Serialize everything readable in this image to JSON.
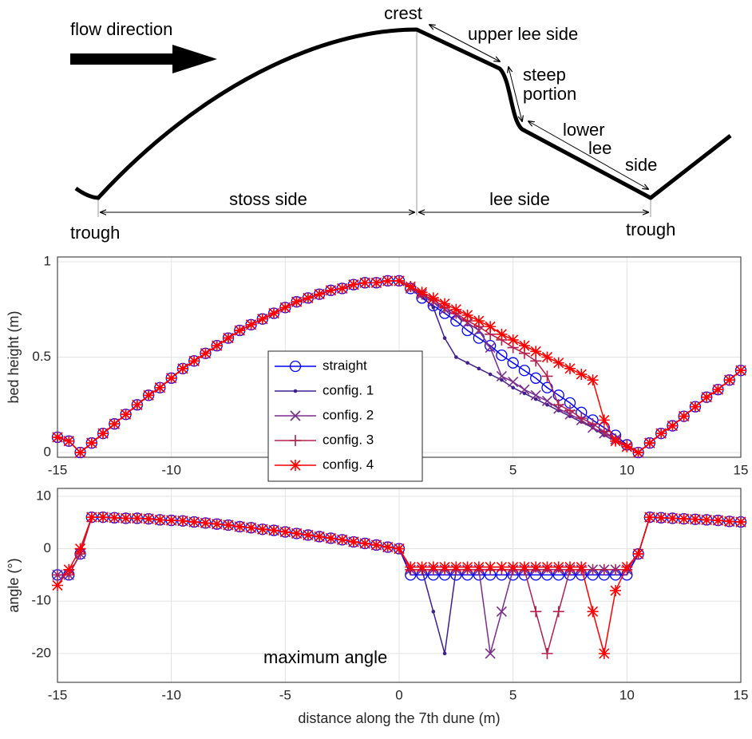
{
  "diagram": {
    "flow_label": "flow direction",
    "crest": "crest",
    "upper_lee": "upper lee side",
    "steep": [
      "steep",
      "portion"
    ],
    "lower_lee": [
      "lower",
      "lee",
      "side"
    ],
    "stoss": "stoss side",
    "lee": "lee side",
    "trough_left": "trough",
    "trough_right": "trough"
  },
  "chart_data": [
    {
      "type": "line",
      "ylabel": "bed height (m)",
      "xlim": [
        -15,
        15
      ],
      "xticks": [
        -15,
        -10,
        -5,
        0,
        5,
        10,
        15
      ],
      "ylim": [
        -0.025,
        1.025
      ],
      "yticks": [
        0,
        0.5,
        1
      ],
      "grid": true,
      "legend": "center",
      "x": [
        -15,
        -14.5,
        -14,
        -13.5,
        -13,
        -12.5,
        -12,
        -11.5,
        -11,
        -10.5,
        -10,
        -9.5,
        -9,
        -8.5,
        -8,
        -7.5,
        -7,
        -6.5,
        -6,
        -5.5,
        -5,
        -4.5,
        -4,
        -3.5,
        -3,
        -2.5,
        -2,
        -1.5,
        -1,
        -0.5,
        0,
        0.5,
        1,
        1.5,
        2,
        2.5,
        3,
        3.5,
        4,
        4.5,
        5,
        5.5,
        6,
        6.5,
        7,
        7.5,
        8,
        8.5,
        9,
        9.5,
        10,
        10.5,
        11,
        11.5,
        12,
        12.5,
        13,
        13.5,
        14,
        14.5,
        15
      ],
      "series": [
        {
          "name": "straight",
          "color": "#0000ff",
          "marker": "o",
          "values": [
            0.08,
            0.06,
            0,
            0.05,
            0.1,
            0.15,
            0.2,
            0.25,
            0.3,
            0.34,
            0.39,
            0.44,
            0.48,
            0.52,
            0.56,
            0.6,
            0.64,
            0.67,
            0.7,
            0.73,
            0.76,
            0.79,
            0.81,
            0.83,
            0.85,
            0.86,
            0.88,
            0.89,
            0.89,
            0.9,
            0.9,
            0.86,
            0.81,
            0.77,
            0.73,
            0.69,
            0.64,
            0.6,
            0.56,
            0.51,
            0.47,
            0.43,
            0.39,
            0.34,
            0.3,
            0.26,
            0.21,
            0.17,
            0.13,
            0.09,
            0.04,
            0,
            0.05,
            0.1,
            0.14,
            0.19,
            0.24,
            0.29,
            0.33,
            0.38,
            0.43
          ]
        },
        {
          "name": "config. 1",
          "color": "#3f1f8f",
          "marker": ".",
          "values": [
            0.08,
            0.06,
            0,
            0.05,
            0.1,
            0.15,
            0.2,
            0.25,
            0.3,
            0.34,
            0.39,
            0.44,
            0.48,
            0.52,
            0.56,
            0.6,
            0.64,
            0.67,
            0.7,
            0.73,
            0.76,
            0.79,
            0.81,
            0.83,
            0.85,
            0.86,
            0.88,
            0.89,
            0.89,
            0.9,
            0.9,
            0.87,
            0.82,
            0.76,
            0.6,
            0.5,
            0.47,
            0.44,
            0.41,
            0.38,
            0.34,
            0.31,
            0.28,
            0.25,
            0.22,
            0.19,
            0.16,
            0.13,
            0.09,
            0.06,
            0.03,
            0,
            0.05,
            0.1,
            0.14,
            0.19,
            0.24,
            0.29,
            0.33,
            0.38,
            0.43
          ]
        },
        {
          "name": "config. 2",
          "color": "#7b2d8e",
          "marker": "x",
          "values": [
            0.08,
            0.06,
            0,
            0.05,
            0.1,
            0.15,
            0.2,
            0.25,
            0.3,
            0.34,
            0.39,
            0.44,
            0.48,
            0.52,
            0.56,
            0.6,
            0.64,
            0.67,
            0.7,
            0.73,
            0.76,
            0.79,
            0.81,
            0.83,
            0.85,
            0.86,
            0.88,
            0.89,
            0.89,
            0.9,
            0.9,
            0.86,
            0.83,
            0.79,
            0.75,
            0.72,
            0.68,
            0.64,
            0.55,
            0.4,
            0.37,
            0.33,
            0.3,
            0.27,
            0.23,
            0.2,
            0.17,
            0.13,
            0.1,
            0.07,
            0.03,
            0,
            0.05,
            0.1,
            0.14,
            0.19,
            0.24,
            0.29,
            0.33,
            0.38,
            0.43
          ]
        },
        {
          "name": "config. 3",
          "color": "#b3204d",
          "marker": "+",
          "values": [
            0.08,
            0.06,
            0,
            0.05,
            0.1,
            0.15,
            0.2,
            0.25,
            0.3,
            0.34,
            0.39,
            0.44,
            0.48,
            0.52,
            0.56,
            0.6,
            0.64,
            0.67,
            0.7,
            0.73,
            0.76,
            0.79,
            0.81,
            0.83,
            0.85,
            0.86,
            0.88,
            0.89,
            0.89,
            0.9,
            0.9,
            0.87,
            0.83,
            0.8,
            0.76,
            0.73,
            0.69,
            0.66,
            0.62,
            0.59,
            0.55,
            0.52,
            0.48,
            0.4,
            0.25,
            0.22,
            0.18,
            0.15,
            0.11,
            0.07,
            0.04,
            0,
            0.05,
            0.1,
            0.14,
            0.19,
            0.24,
            0.29,
            0.33,
            0.38,
            0.43
          ]
        },
        {
          "name": "config. 4",
          "color": "#ff0000",
          "marker": "*",
          "values": [
            0.08,
            0.06,
            0,
            0.05,
            0.1,
            0.15,
            0.2,
            0.25,
            0.3,
            0.34,
            0.39,
            0.44,
            0.48,
            0.52,
            0.56,
            0.6,
            0.64,
            0.67,
            0.7,
            0.73,
            0.76,
            0.79,
            0.81,
            0.83,
            0.85,
            0.86,
            0.88,
            0.89,
            0.89,
            0.9,
            0.9,
            0.87,
            0.84,
            0.81,
            0.78,
            0.75,
            0.72,
            0.69,
            0.66,
            0.62,
            0.59,
            0.56,
            0.53,
            0.5,
            0.47,
            0.44,
            0.41,
            0.38,
            0.17,
            0.06,
            0.03,
            0,
            0.05,
            0.1,
            0.14,
            0.19,
            0.24,
            0.29,
            0.33,
            0.38,
            0.43
          ]
        }
      ]
    },
    {
      "type": "line",
      "ylabel": "angle (°)",
      "xlabel": "distance along the 7th dune (m)",
      "annotation": "maximum angle",
      "xlim": [
        -15,
        15
      ],
      "xticks": [
        -15,
        -10,
        -5,
        0,
        5,
        10,
        15
      ],
      "ylim": [
        -25.5,
        11.5
      ],
      "yticks": [
        -20,
        -10,
        0,
        10
      ],
      "grid": true,
      "x": [
        -15,
        -14.5,
        -14,
        -13.5,
        -13,
        -12.5,
        -12,
        -11.5,
        -11,
        -10.5,
        -10,
        -9.5,
        -9,
        -8.5,
        -8,
        -7.5,
        -7,
        -6.5,
        -6,
        -5.5,
        -5,
        -4.5,
        -4,
        -3.5,
        -3,
        -2.5,
        -2,
        -1.5,
        -1,
        -0.5,
        0,
        0.5,
        1,
        1.5,
        2,
        2.5,
        3,
        3.5,
        4,
        4.5,
        5,
        5.5,
        6,
        6.5,
        7,
        7.5,
        8,
        8.5,
        9,
        9.5,
        10,
        10.5,
        11,
        11.5,
        12,
        12.5,
        13,
        13.5,
        14,
        14.5,
        15
      ],
      "series": [
        {
          "name": "straight",
          "color": "#0000ff",
          "marker": "o",
          "values": [
            -5,
            -5,
            -1,
            6.0,
            6.0,
            5.9,
            5.8,
            5.8,
            5.7,
            5.5,
            5.4,
            5.3,
            5.1,
            4.9,
            4.7,
            4.5,
            4.2,
            4.0,
            3.7,
            3.5,
            3.2,
            2.9,
            2.6,
            2.3,
            2.0,
            1.7,
            1.3,
            1.0,
            0.7,
            0.3,
            0,
            -5,
            -5,
            -5,
            -5,
            -5,
            -5,
            -5,
            -5,
            -5,
            -5,
            -5,
            -5,
            -5,
            -5,
            -5,
            -5,
            -5,
            -5,
            -5,
            -5,
            -1,
            6.0,
            5.9,
            5.8,
            5.7,
            5.6,
            5.5,
            5.4,
            5.2,
            5.1
          ]
        },
        {
          "name": "config. 1",
          "color": "#3f1f8f",
          "marker": ".",
          "values": [
            -5,
            -5,
            -1,
            6.0,
            6.0,
            5.9,
            5.8,
            5.8,
            5.7,
            5.5,
            5.4,
            5.3,
            5.1,
            4.9,
            4.7,
            4.5,
            4.2,
            4.0,
            3.7,
            3.5,
            3.2,
            2.9,
            2.6,
            2.3,
            2.0,
            1.7,
            1.3,
            1.0,
            0.7,
            0.3,
            0,
            -4,
            -4,
            -12,
            -20,
            -4,
            -4,
            -4,
            -4,
            -4,
            -4,
            -4,
            -4,
            -4,
            -4,
            -4,
            -4,
            -4,
            -4,
            -4,
            -4,
            -1,
            6.0,
            5.9,
            5.8,
            5.7,
            5.6,
            5.5,
            5.4,
            5.2,
            5.1
          ]
        },
        {
          "name": "config. 2",
          "color": "#7b2d8e",
          "marker": "x",
          "values": [
            -5,
            -5,
            -1,
            6.0,
            6.0,
            5.9,
            5.8,
            5.8,
            5.7,
            5.5,
            5.4,
            5.3,
            5.1,
            4.9,
            4.7,
            4.5,
            4.2,
            4.0,
            3.7,
            3.5,
            3.2,
            2.9,
            2.6,
            2.3,
            2.0,
            1.7,
            1.3,
            1.0,
            0.7,
            0.3,
            0,
            -4,
            -4,
            -4,
            -4,
            -4,
            -4,
            -4,
            -20,
            -12,
            -4,
            -4,
            -4,
            -4,
            -4,
            -4,
            -4,
            -4,
            -4,
            -4,
            -4,
            -1,
            6.0,
            5.9,
            5.8,
            5.7,
            5.6,
            5.5,
            5.4,
            5.2,
            5.1
          ]
        },
        {
          "name": "config. 3",
          "color": "#b3204d",
          "marker": "+",
          "values": [
            -5,
            -5,
            -1,
            6.0,
            6.0,
            5.9,
            5.8,
            5.8,
            5.7,
            5.5,
            5.4,
            5.3,
            5.1,
            4.9,
            4.7,
            4.5,
            4.2,
            4.0,
            3.7,
            3.5,
            3.2,
            2.9,
            2.6,
            2.3,
            2.0,
            1.7,
            1.3,
            1.0,
            0.7,
            0.3,
            0,
            -4,
            -4,
            -4,
            -4,
            -4,
            -4,
            -4,
            -4,
            -4,
            -4,
            -4,
            -12,
            -20,
            -12,
            -4,
            -4,
            -4,
            -4,
            -4,
            -4,
            -1,
            6.0,
            5.9,
            5.8,
            5.7,
            5.6,
            5.5,
            5.4,
            5.2,
            5.1
          ]
        },
        {
          "name": "config. 4",
          "color": "#ff0000",
          "marker": "*",
          "values": [
            -7,
            -4,
            0,
            6.0,
            6.0,
            5.9,
            5.8,
            5.8,
            5.7,
            5.5,
            5.4,
            5.3,
            5.1,
            4.9,
            4.7,
            4.5,
            4.2,
            4.0,
            3.7,
            3.5,
            3.2,
            2.9,
            2.6,
            2.3,
            2.0,
            1.7,
            1.3,
            1.0,
            0.7,
            0.3,
            0,
            -3.5,
            -3.5,
            -3.5,
            -3.5,
            -3.5,
            -3.5,
            -3.5,
            -3.5,
            -3.5,
            -3.5,
            -3.5,
            -3.5,
            -3.5,
            -3.5,
            -3.5,
            -3.5,
            -12,
            -20,
            -8,
            -3.5,
            -1,
            6.0,
            5.9,
            5.8,
            5.7,
            5.6,
            5.5,
            5.4,
            5.2,
            5.1
          ]
        }
      ]
    }
  ]
}
